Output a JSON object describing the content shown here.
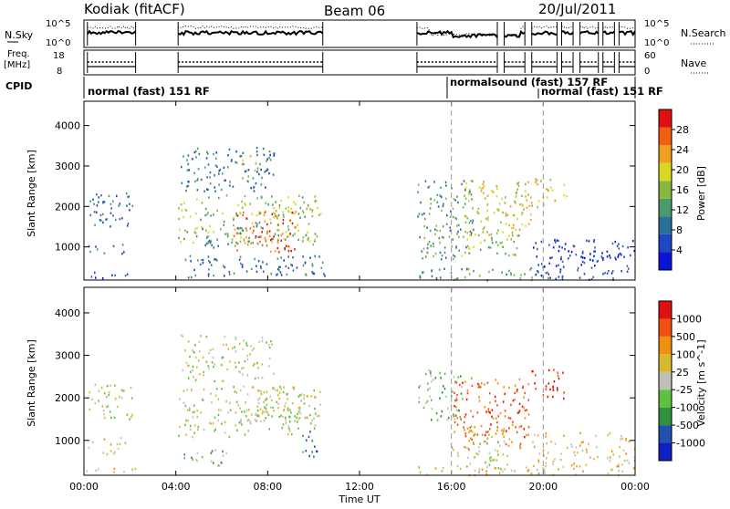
{
  "header": {
    "station": "Kodiak (fitACF)",
    "beam": "Beam 06",
    "date": "20/Jul/2011"
  },
  "sky_panel": {
    "left_label": "N.Sky",
    "right_label": "N.Search",
    "right_ticks": [
      "10^5",
      "10^0"
    ],
    "left_ticks": [
      "10^5",
      "10^0"
    ]
  },
  "freq_panel": {
    "left_label_1": "Freq.",
    "left_label_2": "[MHz]",
    "left_ticks": [
      "18",
      "8"
    ],
    "right_label": "Nave",
    "right_ticks": [
      "60",
      "0"
    ]
  },
  "cpid": {
    "label": "CPID",
    "modes": [
      {
        "text": "normal (fast) 151 RF"
      },
      {
        "text": "normalsound (fast) 157 RF"
      },
      {
        "text": "normal (fast) 151 RF"
      }
    ]
  },
  "x_axis": {
    "label": "Time UT",
    "ticks": [
      "00:00",
      "04:00",
      "08:00",
      "12:00",
      "16:00",
      "20:00",
      "00:00"
    ]
  },
  "colors": {
    "power": [
      "#0a14d8",
      "#1e46c0",
      "#2a6e9c",
      "#4a9a6e",
      "#86b840",
      "#d8d820",
      "#f0a020",
      "#f06010",
      "#e01010"
    ],
    "velocity": [
      "#1020c0",
      "#2050b0",
      "#309040",
      "#60c040",
      "#c0c0b8",
      "#d8b830",
      "#f09010",
      "#f05010",
      "#e01010"
    ]
  },
  "chart_data": [
    {
      "type": "heatmap",
      "title": "Power",
      "xlabel": "Time UT",
      "ylabel": "Slant Range [km]",
      "colorbar_label": "Power [dB]",
      "colorbar_ticks": [
        "28",
        "24",
        "20",
        "16",
        "12",
        "8",
        "4"
      ],
      "xlim": [
        0,
        24
      ],
      "ylim": [
        180,
        4600
      ],
      "yticks": [
        "4000",
        "3000",
        "2000",
        "1000"
      ],
      "clusters": [
        {
          "t0": 0.15,
          "t1": 2.1,
          "r0": 1500,
          "r1": 2350,
          "level": 2
        },
        {
          "t0": 0.15,
          "t1": 1.8,
          "r0": 850,
          "r1": 1100,
          "level": 2
        },
        {
          "t0": 0.1,
          "t1": 2.3,
          "r0": 250,
          "r1": 400,
          "level": 1
        },
        {
          "t0": 4.1,
          "t1": 10.3,
          "r0": 1100,
          "r1": 2300,
          "level": 4
        },
        {
          "t0": 6.5,
          "t1": 9.2,
          "r0": 900,
          "r1": 1900,
          "level": 7
        },
        {
          "t0": 5.0,
          "t1": 7.8,
          "r0": 1000,
          "r1": 1600,
          "level": 3
        },
        {
          "t0": 4.2,
          "t1": 8.3,
          "r0": 2400,
          "r1": 3500,
          "level": 2
        },
        {
          "t0": 6.8,
          "t1": 7.6,
          "r0": 2700,
          "r1": 3300,
          "level": 5
        },
        {
          "t0": 4.1,
          "t1": 10.5,
          "r0": 250,
          "r1": 800,
          "level": 2
        },
        {
          "t0": 9.5,
          "t1": 10.2,
          "r0": 1000,
          "r1": 1600,
          "level": 4
        },
        {
          "t0": 14.5,
          "t1": 17.0,
          "r0": 700,
          "r1": 2700,
          "level": 3
        },
        {
          "t0": 16.6,
          "t1": 19.5,
          "r0": 1300,
          "r1": 2700,
          "level": 5
        },
        {
          "t0": 16.0,
          "t1": 19.0,
          "r0": 800,
          "r1": 1400,
          "level": 4
        },
        {
          "t0": 14.5,
          "t1": 20.5,
          "r0": 200,
          "r1": 500,
          "level": 3
        },
        {
          "t0": 19.0,
          "t1": 21.0,
          "r0": 2000,
          "r1": 2700,
          "level": 5
        },
        {
          "t0": 19.5,
          "t1": 24.0,
          "r0": 200,
          "r1": 1200,
          "level": 1
        }
      ]
    },
    {
      "type": "heatmap",
      "title": "Velocity",
      "xlabel": "Time UT",
      "ylabel": "Slant Range [km]",
      "colorbar_label": "Velocity [m s^-1]",
      "colorbar_ticks": [
        "1000",
        "500",
        "100",
        "25",
        "-25",
        "-100",
        "-500",
        "-1000"
      ],
      "xlim": [
        0,
        24
      ],
      "ylim": [
        180,
        4600
      ],
      "yticks": [
        "4000",
        "3000",
        "2000",
        "1000"
      ],
      "clusters": [
        {
          "t0": 0.15,
          "t1": 2.1,
          "r0": 1500,
          "r1": 2350,
          "level": 4
        },
        {
          "t0": 0.15,
          "t1": 1.8,
          "r0": 700,
          "r1": 1100,
          "level": 5
        },
        {
          "t0": 0.1,
          "t1": 2.3,
          "r0": 250,
          "r1": 400,
          "level": 5
        },
        {
          "t0": 4.1,
          "t1": 10.3,
          "r0": 1100,
          "r1": 2300,
          "level": 4
        },
        {
          "t0": 7.5,
          "t1": 10.3,
          "r0": 1500,
          "r1": 2300,
          "level": 4
        },
        {
          "t0": 4.1,
          "t1": 6.5,
          "r0": 400,
          "r1": 800,
          "level": 3
        },
        {
          "t0": 9.5,
          "t1": 10.2,
          "r0": 600,
          "r1": 1300,
          "level": 2
        },
        {
          "t0": 4.2,
          "t1": 8.3,
          "r0": 2400,
          "r1": 3500,
          "level": 4
        },
        {
          "t0": 14.5,
          "t1": 16.5,
          "r0": 1500,
          "r1": 2700,
          "level": 3
        },
        {
          "t0": 16.0,
          "t1": 19.5,
          "r0": 1100,
          "r1": 2500,
          "level": 7
        },
        {
          "t0": 16.5,
          "t1": 19.0,
          "r0": 800,
          "r1": 1400,
          "level": 6
        },
        {
          "t0": 16.0,
          "t1": 18.5,
          "r0": 300,
          "r1": 1000,
          "level": 4
        },
        {
          "t0": 14.5,
          "t1": 20.5,
          "r0": 200,
          "r1": 400,
          "level": 5
        },
        {
          "t0": 19.0,
          "t1": 21.0,
          "r0": 2000,
          "r1": 2700,
          "level": 8
        },
        {
          "t0": 19.5,
          "t1": 24.0,
          "r0": 200,
          "r1": 1200,
          "level": 5
        }
      ]
    }
  ]
}
